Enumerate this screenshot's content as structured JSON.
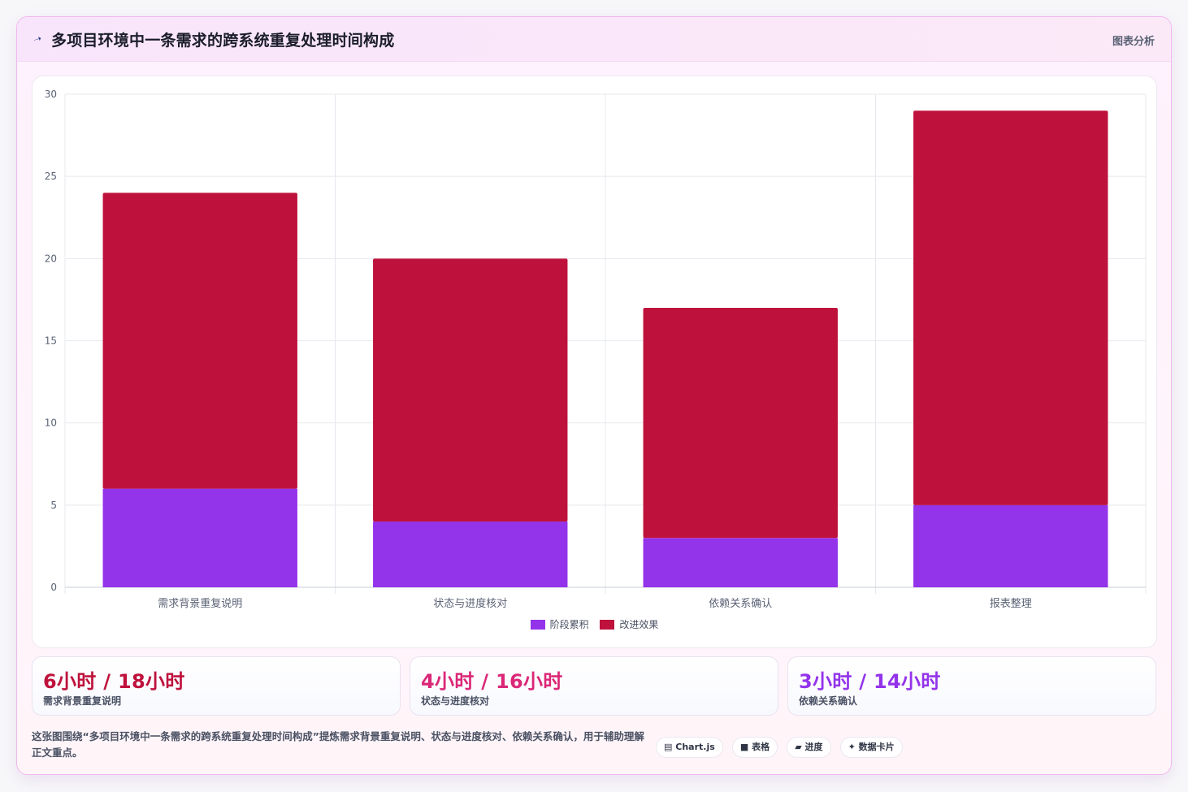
{
  "header": {
    "icon": "spark-icon",
    "title": "多项目环境中一条需求的跨系统重复处理时间构成",
    "link": "图表分析"
  },
  "colors": {
    "series1": "#9333ea",
    "series2": "#be123c",
    "grid": "#e6e8ee",
    "tick": "#5a6275"
  },
  "chart_data": {
    "type": "bar",
    "stacked": true,
    "categories": [
      "需求背景重复说明",
      "状态与进度核对",
      "依赖关系确认",
      "报表整理"
    ],
    "series": [
      {
        "name": "阶段累积",
        "values": [
          6,
          4,
          3,
          5
        ],
        "color": "#9333ea"
      },
      {
        "name": "改进效果",
        "values": [
          18,
          16,
          14,
          24
        ],
        "color": "#be123c"
      }
    ],
    "ylim": [
      0,
      30
    ],
    "yticks": [
      0,
      5,
      10,
      15,
      20,
      25,
      30
    ],
    "grid": true,
    "legend": "bottom"
  },
  "stats": [
    {
      "value": "6小时 / 18小时",
      "label": "需求背景重复说明",
      "color": "#be123c"
    },
    {
      "value": "4小时 / 16小时",
      "label": "状态与进度核对",
      "color": "#db2777"
    },
    {
      "value": "3小时 / 14小时",
      "label": "依赖关系确认",
      "color": "#9333ea"
    }
  ],
  "description": "这张图围绕“多项目环境中一条需求的跨系统重复处理时间构成”提炼需求背景重复说明、状态与进度核对、依赖关系确认，用于辅助理解正文重点。",
  "tags": [
    {
      "icon": "chart-icon",
      "glyph": "▤",
      "label": "Chart.js"
    },
    {
      "icon": "table-icon",
      "glyph": "■",
      "label": "表格"
    },
    {
      "icon": "progress-icon",
      "glyph": "▰",
      "label": "进度"
    },
    {
      "icon": "sparkle-icon",
      "glyph": "✦",
      "label": "数据卡片"
    }
  ]
}
